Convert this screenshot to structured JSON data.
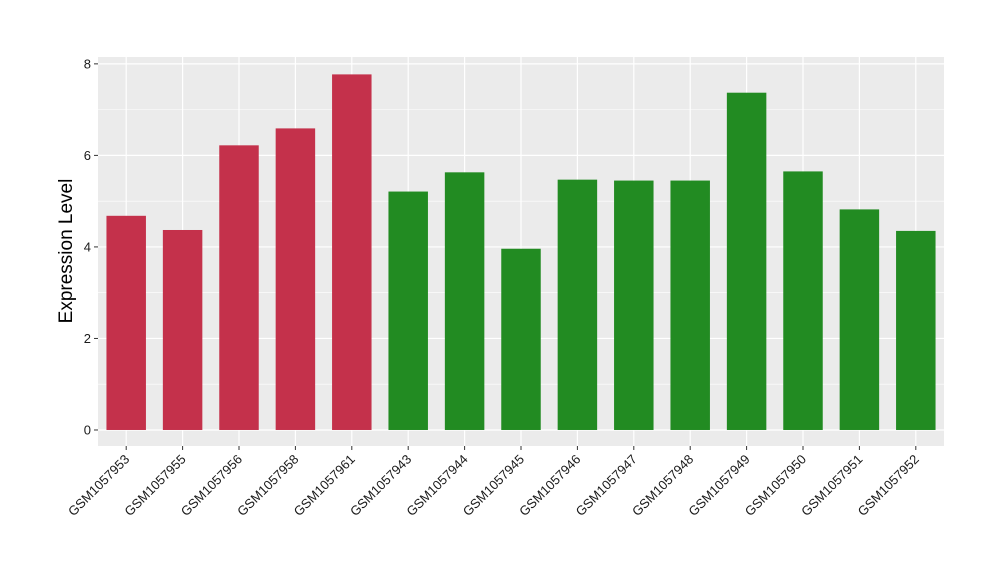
{
  "chart_data": {
    "type": "bar",
    "title": "",
    "xlabel": "",
    "ylabel": "Expression Level",
    "ylim": [
      -0.35,
      8.15
    ],
    "yticks": [
      0,
      2,
      4,
      6,
      8
    ],
    "grid": true,
    "legend": "none",
    "categories": [
      "GSM1057953",
      "GSM1057955",
      "GSM1057956",
      "GSM1057958",
      "GSM1057961",
      "GSM1057943",
      "GSM1057944",
      "GSM1057945",
      "GSM1057946",
      "GSM1057947",
      "GSM1057948",
      "GSM1057949",
      "GSM1057950",
      "GSM1057951",
      "GSM1057952"
    ],
    "values": [
      4.68,
      4.37,
      6.22,
      6.59,
      7.77,
      5.21,
      5.63,
      3.96,
      5.47,
      5.45,
      5.45,
      7.37,
      5.65,
      4.82,
      4.35
    ],
    "groups": [
      1,
      1,
      1,
      1,
      1,
      2,
      2,
      2,
      2,
      2,
      2,
      2,
      2,
      2,
      2
    ],
    "colors": {
      "group1": "#c4314b",
      "group2": "#228b22",
      "panel": "#ebebeb",
      "grid": "#ffffff"
    }
  }
}
